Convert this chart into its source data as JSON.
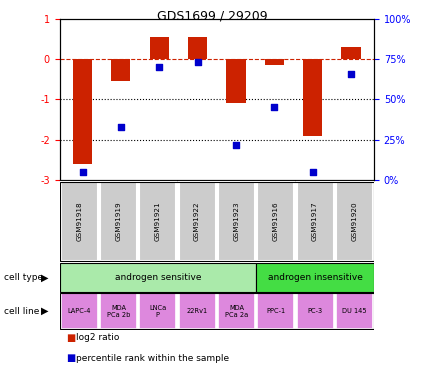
{
  "title": "GDS1699 / 29209",
  "samples": [
    "GSM91918",
    "GSM91919",
    "GSM91921",
    "GSM91922",
    "GSM91923",
    "GSM91916",
    "GSM91917",
    "GSM91920"
  ],
  "log2_ratio": [
    -2.6,
    -0.55,
    0.55,
    0.55,
    -1.1,
    -0.15,
    -1.9,
    0.3
  ],
  "percentile_rank": [
    5,
    33,
    70,
    73,
    22,
    45,
    5,
    66
  ],
  "ylim_left": [
    -3,
    1
  ],
  "ylim_right": [
    0,
    100
  ],
  "yticks_left": [
    -3,
    -2,
    -1,
    0,
    1
  ],
  "yticks_right": [
    0,
    25,
    50,
    75,
    100
  ],
  "ytick_labels_right": [
    "0%",
    "25%",
    "50%",
    "75%",
    "100%"
  ],
  "cell_type_groups": [
    {
      "label": "androgen sensitive",
      "start": 0,
      "end": 5,
      "color": "#aaeaaa"
    },
    {
      "label": "androgen insensitive",
      "start": 5,
      "end": 8,
      "color": "#44dd44"
    }
  ],
  "cell_line_labels": [
    "LAPC-4",
    "MDA\nPCa 2b",
    "LNCa\nP",
    "22Rv1",
    "MDA\nPCa 2a",
    "PPC-1",
    "PC-3",
    "DU 145"
  ],
  "cell_line_color": "#dd88dd",
  "sample_box_color": "#cccccc",
  "bar_color": "#cc2200",
  "dot_color": "#0000cc",
  "dashed_line_color": "#cc2200",
  "bar_width": 0.5,
  "legend_items": [
    {
      "color": "#cc2200",
      "label": "log2 ratio"
    },
    {
      "color": "#0000cc",
      "label": "percentile rank within the sample"
    }
  ]
}
